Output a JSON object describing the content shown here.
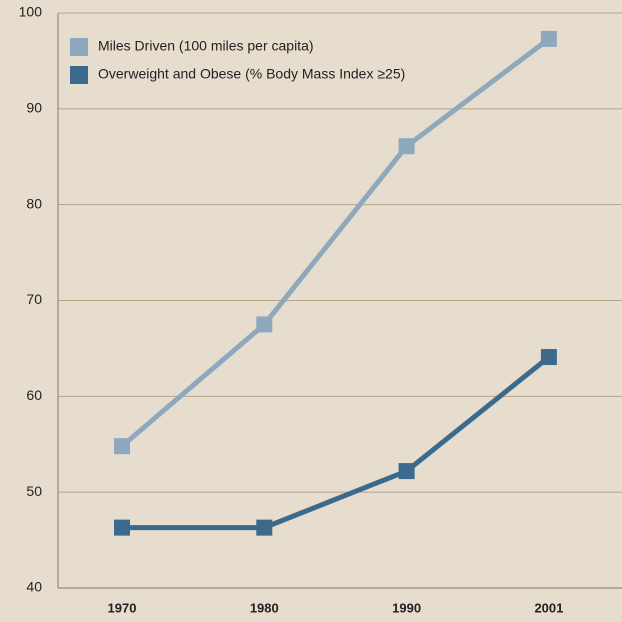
{
  "chart_data": {
    "type": "line",
    "categories": [
      "1970",
      "1980",
      "1990",
      "2001"
    ],
    "series": [
      {
        "name": "Miles Driven (100 miles per capita)",
        "color": "#8ea8bd",
        "values": [
          54.8,
          67.5,
          86.1,
          97.3
        ]
      },
      {
        "name": "Overweight and Obese (% Body Mass Index ≥25)",
        "color": "#3b6a8d",
        "values": [
          46.3,
          46.3,
          52.2,
          64.1
        ]
      }
    ],
    "ylim": [
      40,
      100
    ],
    "yticks": [
      40,
      50,
      60,
      70,
      80,
      90,
      100
    ],
    "grid": true,
    "legend": "upper left"
  }
}
